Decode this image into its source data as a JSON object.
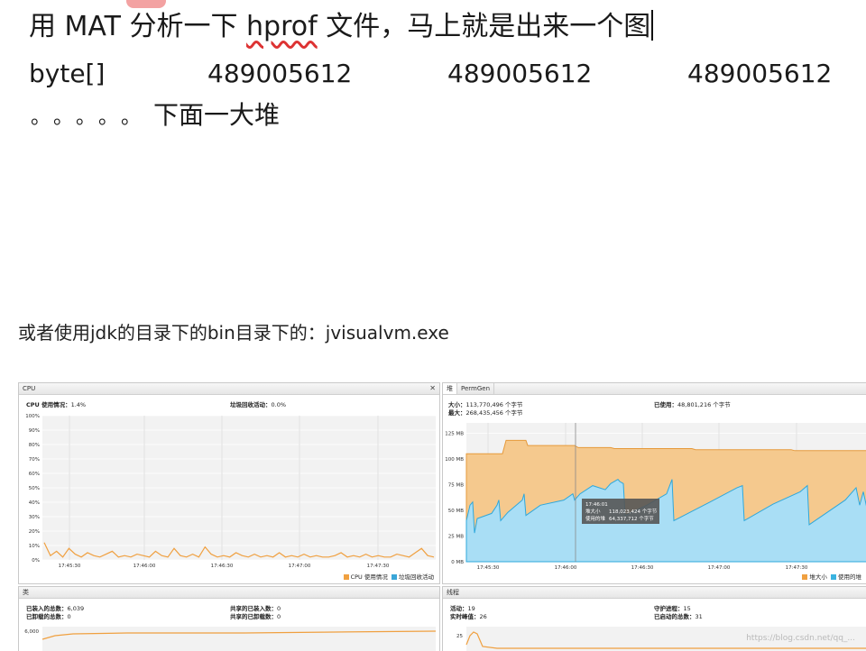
{
  "header_line": {
    "prefix": "用 MAT 分析一下 ",
    "hprof": "hprof",
    "suffix": " 文件，马上就是出来一个图"
  },
  "table_row": {
    "type": "byte[]",
    "values": [
      "489005612",
      "489005612",
      "489005612"
    ]
  },
  "trailing_line": {
    "dots": "。。。。。",
    "text": "下面一大堆"
  },
  "caption": "或者使用jdk的目录下的bin目录下的：jvisualvm.exe",
  "monitor": {
    "cpu": {
      "title": "CPU",
      "usage_label": "CPU 使用情况：",
      "usage_value": "1.4%",
      "gc_label": "垃圾回收活动：",
      "gc_value": "0.0%",
      "y_ticks": [
        "100%",
        "90%",
        "80%",
        "70%",
        "60%",
        "50%",
        "40%",
        "30%",
        "20%",
        "10%",
        "0%"
      ],
      "x_ticks": [
        "17:45:30",
        "17:46:00",
        "17:46:30",
        "17:47:00",
        "17:47:30"
      ],
      "legend": [
        "CPU 使用情况",
        "垃圾回收活动"
      ],
      "colors": {
        "usage": "#f0a040",
        "gc": "#3aa6d8"
      }
    },
    "heap": {
      "tabs": [
        "堆",
        "PermGen"
      ],
      "size_label": "大小：",
      "size_value": "113,770,496 个字节",
      "max_label": "最大：",
      "max_value": "268,435,456 个字节",
      "used_label": "已使用：",
      "used_value": "48,801,216 个字节",
      "y_ticks": [
        "125 MB",
        "100 MB",
        "75 MB",
        "50 MB",
        "25 MB",
        "0 MB"
      ],
      "x_ticks": [
        "17:45:30",
        "17:46:00",
        "17:46:30",
        "17:47:00",
        "17:47:30"
      ],
      "tooltip": {
        "time": "17:46:01",
        "size_label": "堆大小",
        "size_value": "118,023,424 个字节",
        "used_label": "使用的堆",
        "used_value": "64,337,712 个字节"
      },
      "legend": [
        "堆大小",
        "使用的堆"
      ],
      "colors": {
        "size": "#f5b870",
        "used": "#3ab3e0"
      }
    },
    "classes": {
      "title": "类",
      "loaded_label": "已装入的总数：",
      "loaded_value": "6,039",
      "unloaded_label": "已卸载的总数：",
      "unloaded_value": "0",
      "shared_loaded_label": "共享的已装入数：",
      "shared_loaded_value": "0",
      "shared_unloaded_label": "共享的已卸载数：",
      "shared_unloaded_value": "0",
      "y_tick": "6,000"
    },
    "threads": {
      "title": "线程",
      "live_label": "活动：",
      "live_value": "19",
      "peak_label": "实时峰值：",
      "peak_value": "26",
      "daemon_label": "守护进程：",
      "daemon_value": "15",
      "started_label": "已启动的总数：",
      "started_value": "31",
      "y_tick": "25"
    }
  },
  "watermark": "https://blog.csdn.net/qq_..."
}
